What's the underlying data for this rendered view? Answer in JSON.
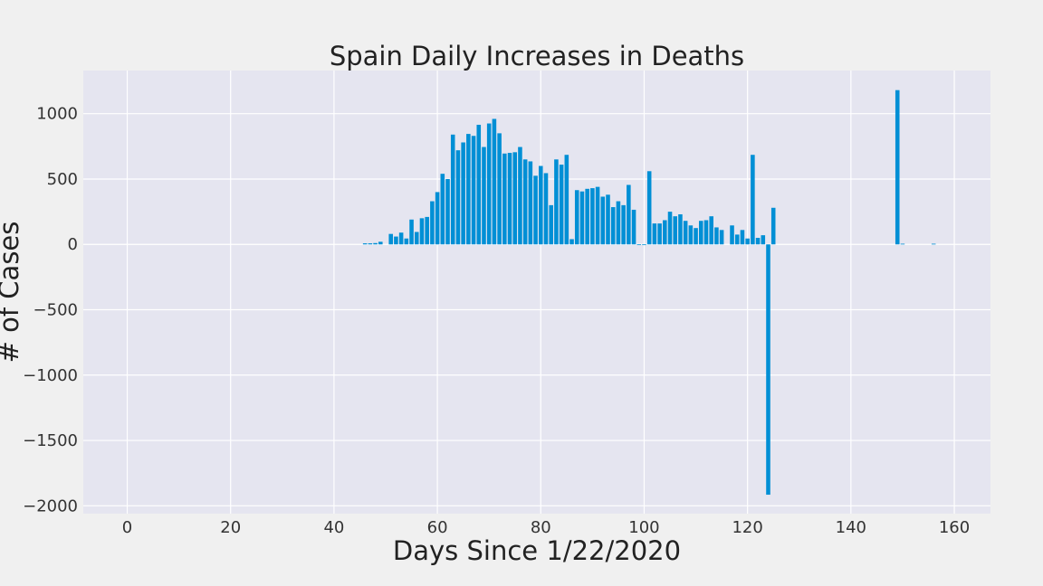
{
  "chart_data": {
    "type": "bar",
    "title": "Spain Daily Increases in Deaths",
    "xlabel": "Days Since 1/22/2020",
    "ylabel": "# of Cases",
    "xlim": [
      -8.5,
      167
    ],
    "ylim": [
      -2060,
      1330
    ],
    "xticks": [
      0,
      20,
      40,
      60,
      80,
      100,
      120,
      140,
      160
    ],
    "yticks": [
      -2000,
      -1500,
      -1000,
      -500,
      0,
      500,
      1000
    ],
    "grid": true,
    "bar_color": "#008fd5",
    "plot_background": "#e5e5f0",
    "figure_background": "#f0f0f0",
    "x": [
      46,
      47,
      48,
      49,
      51,
      52,
      53,
      54,
      55,
      56,
      57,
      58,
      59,
      60,
      61,
      62,
      63,
      64,
      65,
      66,
      67,
      68,
      69,
      70,
      71,
      72,
      73,
      74,
      75,
      76,
      77,
      78,
      79,
      80,
      81,
      82,
      83,
      84,
      85,
      86,
      87,
      88,
      89,
      90,
      91,
      92,
      93,
      94,
      95,
      96,
      97,
      98,
      99,
      100,
      101,
      102,
      103,
      104,
      105,
      106,
      107,
      108,
      109,
      110,
      111,
      112,
      113,
      114,
      115,
      117,
      118,
      119,
      120,
      121,
      122,
      123,
      124,
      125,
      149,
      150,
      156
    ],
    "values": [
      8,
      8,
      10,
      20,
      80,
      60,
      90,
      45,
      190,
      95,
      200,
      210,
      330,
      400,
      540,
      500,
      840,
      720,
      780,
      845,
      830,
      915,
      745,
      925,
      960,
      850,
      695,
      700,
      705,
      745,
      650,
      635,
      525,
      600,
      545,
      300,
      650,
      610,
      685,
      40,
      415,
      405,
      425,
      430,
      440,
      365,
      380,
      285,
      330,
      300,
      455,
      265,
      0,
      0,
      560,
      160,
      160,
      185,
      250,
      215,
      230,
      180,
      145,
      125,
      180,
      185,
      215,
      130,
      110,
      145,
      75,
      110,
      45,
      685,
      50,
      70,
      -1915,
      280,
      1180,
      5,
      5
    ]
  }
}
